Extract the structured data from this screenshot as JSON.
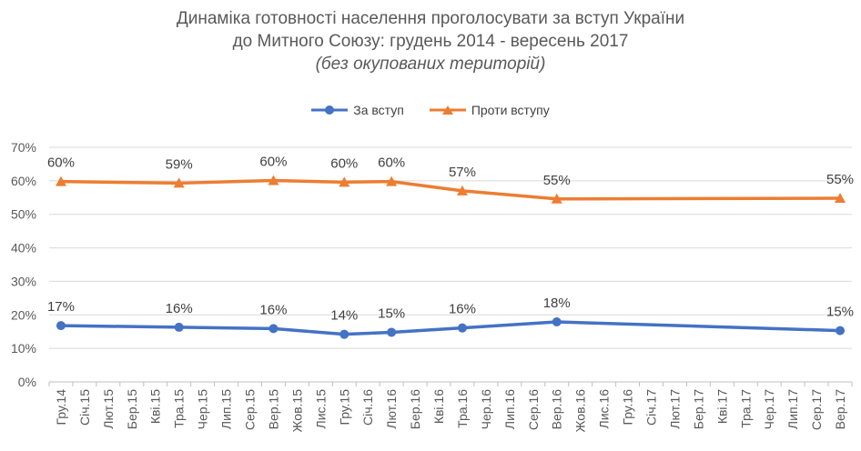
{
  "chart_data": {
    "type": "line",
    "title_lines": [
      "Динаміка готовності населення проголосувати за вступ України",
      "до Митного Союзу: грудень 2014 - вересень 2017"
    ],
    "subtitle": "(без окупованих територій)",
    "categories": [
      "Гру.14",
      "Січ.15",
      "Лют.15",
      "Бер.15",
      "Кві.15",
      "Тра.15",
      "Чер.15",
      "Лип.15",
      "Сер.15",
      "Вер.15",
      "Жов.15",
      "Лис.15",
      "Гру.15",
      "Січ.16",
      "Лют.16",
      "Бер.16",
      "Кві.16",
      "Тра.16",
      "Чер.16",
      "Лип.16",
      "Сер.16",
      "Вер.16",
      "Жов.16",
      "Лис.16",
      "Гру.16",
      "Січ.17",
      "Лют.17",
      "Бер.17",
      "Кві.17",
      "Тра.17",
      "Чер.17",
      "Лип.17",
      "Сер.17",
      "Вер.17"
    ],
    "y_ticks": [
      "0%",
      "10%",
      "20%",
      "30%",
      "40%",
      "50%",
      "60%",
      "70%"
    ],
    "ylim": [
      0,
      70
    ],
    "grid": true,
    "legend_position": "top",
    "series": [
      {
        "name": "За вступ",
        "color": "#4472C4",
        "marker": "circle",
        "points": [
          {
            "index": 0,
            "value": 16.8,
            "label": "17%"
          },
          {
            "index": 5,
            "value": 16.3,
            "label": "16%"
          },
          {
            "index": 9,
            "value": 15.9,
            "label": "16%"
          },
          {
            "index": 12,
            "value": 14.2,
            "label": "14%"
          },
          {
            "index": 14,
            "value": 14.8,
            "label": "15%"
          },
          {
            "index": 17,
            "value": 16.1,
            "label": "16%"
          },
          {
            "index": 21,
            "value": 17.9,
            "label": "18%"
          },
          {
            "index": 33,
            "value": 15.3,
            "label": "15%"
          }
        ]
      },
      {
        "name": "Проти вступу",
        "color": "#ED7D31",
        "marker": "triangle",
        "points": [
          {
            "index": 0,
            "value": 59.8,
            "label": "60%"
          },
          {
            "index": 5,
            "value": 59.3,
            "label": "59%"
          },
          {
            "index": 9,
            "value": 60.1,
            "label": "60%"
          },
          {
            "index": 12,
            "value": 59.6,
            "label": "60%"
          },
          {
            "index": 14,
            "value": 59.8,
            "label": "60%"
          },
          {
            "index": 17,
            "value": 57.0,
            "label": "57%"
          },
          {
            "index": 21,
            "value": 54.6,
            "label": "55%"
          },
          {
            "index": 33,
            "value": 54.8,
            "label": "55%"
          }
        ]
      }
    ]
  }
}
